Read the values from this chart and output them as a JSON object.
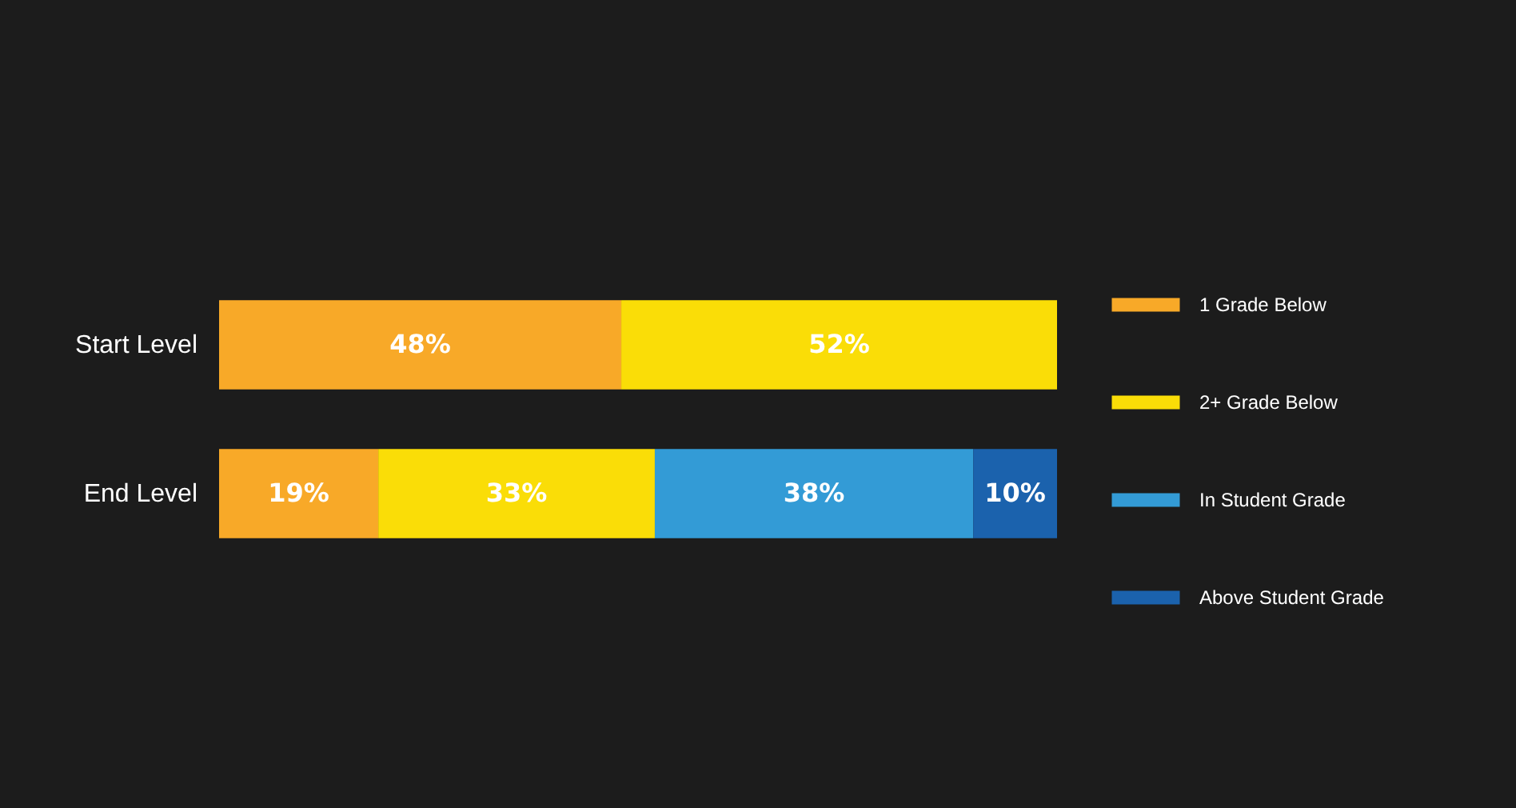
{
  "chart_data": {
    "type": "bar",
    "orientation": "horizontal",
    "stacked": true,
    "categories": [
      "Start Level",
      "End Level"
    ],
    "series": [
      {
        "name": "1 Grade Below",
        "color": "#f8a928",
        "values": [
          48,
          19
        ],
        "value_labels": [
          "48%",
          "19%"
        ]
      },
      {
        "name": "2+ Grade Below",
        "color": "#fadd07",
        "values": [
          52,
          33
        ],
        "value_labels": [
          "52%",
          "33%"
        ]
      },
      {
        "name": "In Student Grade",
        "color": "#339bd6",
        "values": [
          null,
          38
        ],
        "value_labels": [
          null,
          "38%"
        ]
      },
      {
        "name": "Above Student Grade",
        "color": "#1b62ad",
        "values": [
          null,
          10
        ],
        "value_labels": [
          null,
          "10%"
        ]
      }
    ],
    "legend": "right",
    "tick_labels": "y"
  }
}
